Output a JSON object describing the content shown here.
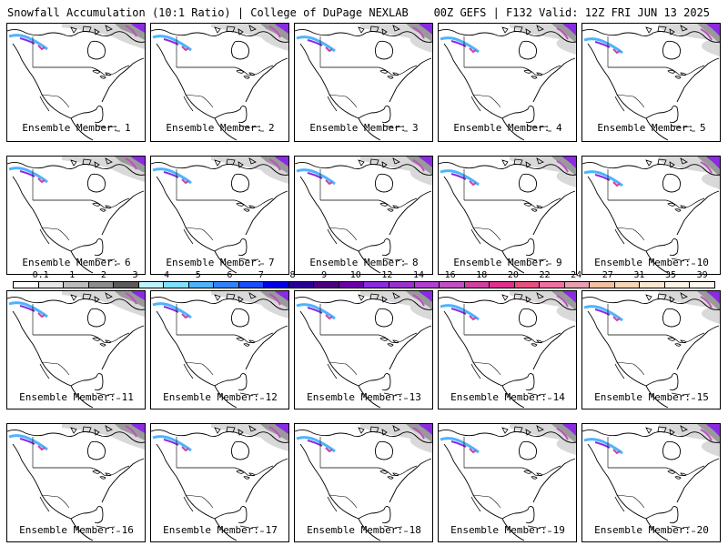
{
  "header": {
    "title_left": "Snowfall Accumulation (10:1 Ratio) | College of DuPage NEXLAB",
    "title_right": "00Z GEFS | F132 Valid: 12Z FRI JUN 13 2025"
  },
  "members": [
    {
      "caption": "Ensemble Member: 1"
    },
    {
      "caption": "Ensemble Member: 2"
    },
    {
      "caption": "Ensemble Member: 3"
    },
    {
      "caption": "Ensemble Member: 4"
    },
    {
      "caption": "Ensemble Member: 5"
    },
    {
      "caption": "Ensemble Member: 6"
    },
    {
      "caption": "Ensemble Member: 7"
    },
    {
      "caption": "Ensemble Member: 8"
    },
    {
      "caption": "Ensemble Member: 9"
    },
    {
      "caption": "Ensemble Member: 10"
    },
    {
      "caption": "Ensemble Member: 11"
    },
    {
      "caption": "Ensemble Member: 12"
    },
    {
      "caption": "Ensemble Member: 13"
    },
    {
      "caption": "Ensemble Member: 14"
    },
    {
      "caption": "Ensemble Member: 15"
    },
    {
      "caption": "Ensemble Member: 16"
    },
    {
      "caption": "Ensemble Member: 17"
    },
    {
      "caption": "Ensemble Member: 18"
    },
    {
      "caption": "Ensemble Member: 19"
    },
    {
      "caption": "Ensemble Member: 20"
    }
  ],
  "colorbar": {
    "labels": [
      "0.1",
      "1",
      "2",
      "3",
      "4",
      "5",
      "6",
      "7",
      "8",
      "9",
      "10",
      "12",
      "14",
      "16",
      "18",
      "20",
      "22",
      "24",
      "27",
      "31",
      "35",
      "39"
    ],
    "colors": [
      "#ffffff",
      "#e6e6e6",
      "#bdbdbd",
      "#8c8c8c",
      "#5a5a5a",
      "#bff2ff",
      "#7fe0ff",
      "#4db3ff",
      "#3380ff",
      "#1a4dff",
      "#0000e6",
      "#2a0099",
      "#4b0082",
      "#6a00a8",
      "#8a2be2",
      "#9932cc",
      "#b040d0",
      "#c050c0",
      "#d040a0",
      "#e0308a",
      "#e85080",
      "#f070a0",
      "#e8a0b0",
      "#f0c0a0",
      "#f7d6b5",
      "#fbe8d0",
      "#fdf3e4",
      "#fff8f0"
    ]
  }
}
